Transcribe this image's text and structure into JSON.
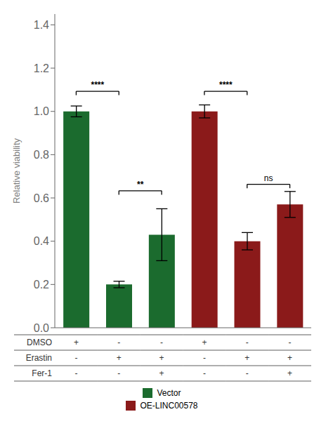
{
  "chart_data": {
    "type": "bar",
    "ylabel": "Relative viability",
    "categories": [
      null,
      null,
      null,
      null,
      null,
      null
    ],
    "series": [
      {
        "name": "Vector",
        "color": "#1b6b2e",
        "values": [
          1.0,
          0.2,
          0.43,
          null,
          null,
          null
        ],
        "errors": [
          0.025,
          0.015,
          0.12,
          null,
          null,
          null
        ]
      },
      {
        "name": "OE-LINC00578",
        "color": "#8b1a1a",
        "values": [
          null,
          null,
          null,
          1.0,
          0.4,
          0.57
        ],
        "errors": [
          null,
          null,
          null,
          0.03,
          0.04,
          0.06
        ]
      }
    ],
    "ylim": [
      0,
      1.45
    ],
    "yticks": [
      {
        "value": 0.0,
        "label": "0.0"
      },
      {
        "value": 0.2,
        "label": "0.2"
      },
      {
        "value": 0.4,
        "label": "0.4"
      },
      {
        "value": 0.6,
        "label": "0.6"
      },
      {
        "value": 0.8,
        "label": "0.8"
      },
      {
        "value": 1.0,
        "label": "1.0"
      },
      {
        "value": 1.2,
        "label": "1.2"
      },
      {
        "value": 1.4,
        "label": "1.4"
      }
    ],
    "annotations": [
      {
        "from": 0,
        "to": 1,
        "y": 1.075,
        "label": "****"
      },
      {
        "from": 1,
        "to": 2,
        "y": 0.615,
        "label": "**"
      },
      {
        "from": 3,
        "to": 4,
        "y": 1.075,
        "label": "****"
      },
      {
        "from": 4,
        "to": 5,
        "y": 0.645,
        "label": "ns"
      }
    ],
    "condition_rows": [
      {
        "label": "DMSO",
        "signs": [
          "+",
          "-",
          "-",
          "+",
          "-",
          "-"
        ]
      },
      {
        "label": "Erastin",
        "signs": [
          "-",
          "+",
          "+",
          "-",
          "+",
          "+"
        ]
      },
      {
        "label": "Fer-1",
        "signs": [
          "-",
          "-",
          "+",
          "-",
          "-",
          "+"
        ]
      }
    ],
    "legend": "bottom",
    "grid": false
  }
}
